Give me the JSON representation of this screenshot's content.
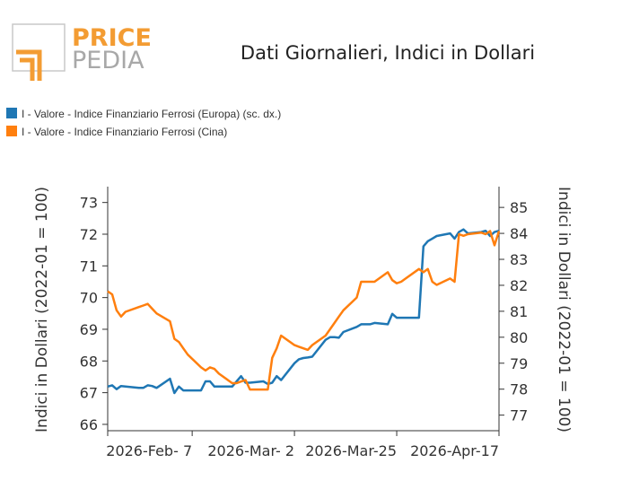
{
  "logo": {
    "line1": "PRICE",
    "line2": "PEDIA",
    "color_orange": "#f39c33",
    "color_gray": "#a8a8a8"
  },
  "chart_data": {
    "type": "line",
    "title": "Dati Giornalieri, Indici in Dollari",
    "x": [
      "2026-01-19",
      "2026-01-20",
      "2026-01-21",
      "2026-01-22",
      "2026-01-23",
      "2026-01-26",
      "2026-01-27",
      "2026-01-28",
      "2026-01-29",
      "2026-01-30",
      "2026-02-02",
      "2026-02-03",
      "2026-02-04",
      "2026-02-05",
      "2026-02-06",
      "2026-02-09",
      "2026-02-10",
      "2026-02-11",
      "2026-02-12",
      "2026-02-13",
      "2026-02-16",
      "2026-02-17",
      "2026-02-18",
      "2026-02-19",
      "2026-02-20",
      "2026-02-23",
      "2026-02-24",
      "2026-02-25",
      "2026-02-26",
      "2026-02-27",
      "2026-03-02",
      "2026-03-03",
      "2026-03-04",
      "2026-03-05",
      "2026-03-06",
      "2026-03-09",
      "2026-03-10",
      "2026-03-11",
      "2026-03-12",
      "2026-03-13",
      "2026-03-16",
      "2026-03-17",
      "2026-03-18",
      "2026-03-19",
      "2026-03-20",
      "2026-03-23",
      "2026-03-24",
      "2026-03-25",
      "2026-03-26",
      "2026-03-27",
      "2026-03-30",
      "2026-03-31",
      "2026-04-01",
      "2026-04-02",
      "2026-04-03",
      "2026-04-06",
      "2026-04-07",
      "2026-04-08",
      "2026-04-09",
      "2026-04-10",
      "2026-04-13",
      "2026-04-14",
      "2026-04-15",
      "2026-04-16",
      "2026-04-17"
    ],
    "x_ticks": [
      "2026-Feb- 7",
      "2026-Mar- 2",
      "2026-Mar-25",
      "2026-Apr-17"
    ],
    "x_tick_dates": [
      "2026-02-07",
      "2026-03-02",
      "2026-03-25",
      "2026-04-17"
    ],
    "ylabel": "Indici in Dollari (2022-01 = 100)",
    "ylabel_right": "Indici in Dollari (2022-01 = 100)",
    "ylim": [
      65.8,
      73.5
    ],
    "ylim_right": [
      76.4,
      85.8
    ],
    "yticks": [
      66,
      67,
      68,
      69,
      70,
      71,
      72,
      73
    ],
    "yticks_right": [
      77,
      78,
      79,
      80,
      81,
      82,
      83,
      84,
      85
    ],
    "legend_position": "top-left",
    "series": [
      {
        "name": "I - Valore - Indice Finanziario Ferrosi (Europa) (sc. dx.)",
        "axis": "right",
        "color": "#1f77b4",
        "values": [
          78.1,
          78.15,
          78.0,
          78.12,
          78.1,
          78.05,
          78.05,
          78.15,
          78.12,
          78.05,
          78.4,
          77.85,
          78.1,
          77.95,
          77.95,
          77.95,
          78.3,
          78.3,
          78.1,
          78.1,
          78.1,
          78.3,
          78.5,
          78.25,
          78.25,
          78.3,
          78.2,
          78.25,
          78.5,
          78.35,
          79.0,
          79.15,
          79.2,
          79.22,
          79.25,
          79.9,
          80.0,
          80.0,
          79.98,
          80.2,
          80.4,
          80.5,
          80.5,
          80.5,
          80.55,
          80.5,
          80.9,
          80.75,
          80.75,
          80.75,
          80.75,
          83.5,
          83.7,
          83.8,
          83.9,
          84.0,
          83.8,
          84.05,
          84.15,
          84.0,
          84.05,
          84.1,
          83.9,
          84.05,
          84.1
        ]
      },
      {
        "name": "I - Valore - Indice Finanziario Ferrosi (Cina)",
        "axis": "left",
        "color": "#ff7f0e",
        "values": [
          70.2,
          70.1,
          69.6,
          69.4,
          69.55,
          69.7,
          69.75,
          69.8,
          69.65,
          69.5,
          69.25,
          68.7,
          68.6,
          68.4,
          68.2,
          67.8,
          67.7,
          67.8,
          67.75,
          67.6,
          67.3,
          67.3,
          67.35,
          67.4,
          67.1,
          67.1,
          67.1,
          68.1,
          68.4,
          68.8,
          68.5,
          68.45,
          68.4,
          68.35,
          68.5,
          68.8,
          69.0,
          69.2,
          69.4,
          69.6,
          70.0,
          70.5,
          70.5,
          70.5,
          70.5,
          70.8,
          70.55,
          70.45,
          70.5,
          70.6,
          70.9,
          70.8,
          70.9,
          70.5,
          70.4,
          70.6,
          70.5,
          72.0,
          71.95,
          72.0,
          72.05,
          72.0,
          72.1,
          71.65,
          72.1
        ]
      }
    ]
  }
}
